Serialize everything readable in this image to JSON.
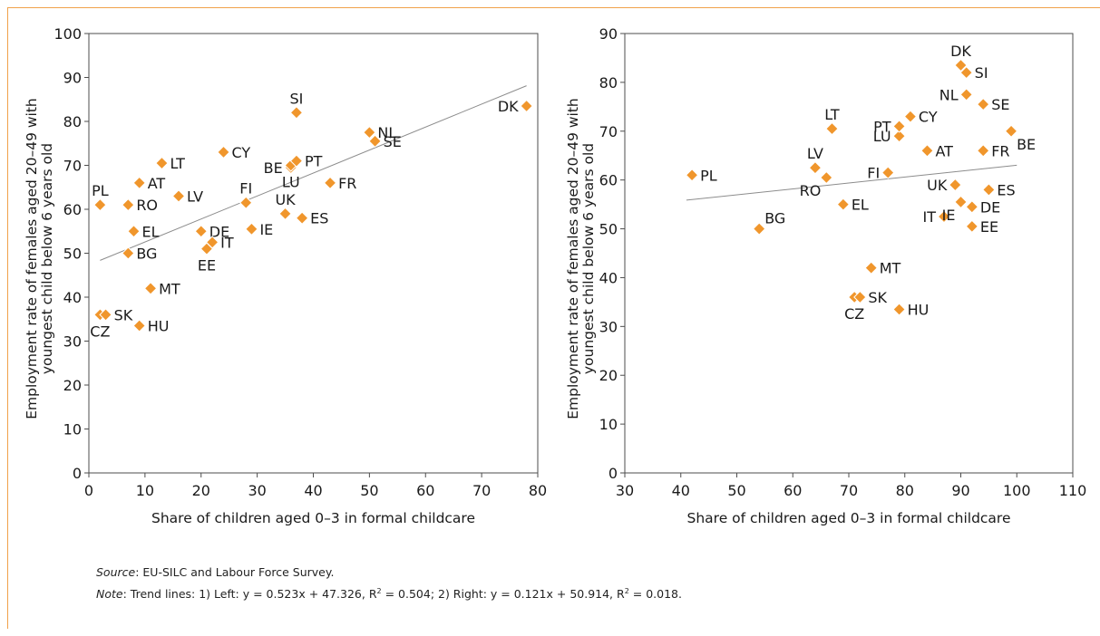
{
  "chart_data": [
    {
      "type": "scatter",
      "title": "",
      "xlabel": "Share of children aged 0–3 in formal childcare",
      "ylabel_lines": [
        "Employment rate of females aged 20–49 with",
        "youngest child below 6 years old"
      ],
      "xlim": [
        0,
        80
      ],
      "ylim": [
        0,
        100
      ],
      "xticks": [
        0,
        10,
        20,
        30,
        40,
        50,
        60,
        70,
        80
      ],
      "yticks": [
        0,
        10,
        20,
        30,
        40,
        50,
        60,
        70,
        80,
        90,
        100
      ],
      "grid": false,
      "marker_color": "#f0962c",
      "trendline": {
        "slope": 0.523,
        "intercept": 47.326,
        "x_range": [
          2,
          78
        ],
        "color": "#8c8c8c"
      },
      "points": [
        {
          "label": "PL",
          "x": 2,
          "y": 61,
          "anchor": "above"
        },
        {
          "label": "CZ",
          "x": 2,
          "y": 36,
          "anchor": "below"
        },
        {
          "label": "SK",
          "x": 3,
          "y": 36,
          "anchor": "right"
        },
        {
          "label": "BG",
          "x": 7,
          "y": 50,
          "anchor": "right"
        },
        {
          "label": "RO",
          "x": 7,
          "y": 61,
          "anchor": "right"
        },
        {
          "label": "EL",
          "x": 8,
          "y": 55,
          "anchor": "right"
        },
        {
          "label": "AT",
          "x": 9,
          "y": 66,
          "anchor": "right"
        },
        {
          "label": "HU",
          "x": 9,
          "y": 33.5,
          "anchor": "right"
        },
        {
          "label": "MT",
          "x": 11,
          "y": 42,
          "anchor": "right"
        },
        {
          "label": "LT",
          "x": 13,
          "y": 70.5,
          "anchor": "right"
        },
        {
          "label": "LV",
          "x": 16,
          "y": 63,
          "anchor": "right"
        },
        {
          "label": "DE",
          "x": 20,
          "y": 55,
          "anchor": "right"
        },
        {
          "label": "EE",
          "x": 21,
          "y": 51,
          "anchor": "below"
        },
        {
          "label": "IT",
          "x": 22,
          "y": 52.5,
          "anchor": "right"
        },
        {
          "label": "CY",
          "x": 24,
          "y": 73,
          "anchor": "right"
        },
        {
          "label": "FI",
          "x": 28,
          "y": 61.5,
          "anchor": "above"
        },
        {
          "label": "IE",
          "x": 29,
          "y": 55.5,
          "anchor": "right"
        },
        {
          "label": "UK",
          "x": 35,
          "y": 59,
          "anchor": "above"
        },
        {
          "label": "BE",
          "x": 36,
          "y": 69.5,
          "anchor": "left"
        },
        {
          "label": "LU",
          "x": 36,
          "y": 70,
          "anchor": "below"
        },
        {
          "label": "PT",
          "x": 37,
          "y": 71,
          "anchor": "right"
        },
        {
          "label": "SI",
          "x": 37,
          "y": 82,
          "anchor": "above"
        },
        {
          "label": "ES",
          "x": 38,
          "y": 58,
          "anchor": "right"
        },
        {
          "label": "FR",
          "x": 43,
          "y": 66,
          "anchor": "right"
        },
        {
          "label": "NL",
          "x": 50,
          "y": 77.5,
          "anchor": "right"
        },
        {
          "label": "SE",
          "x": 51,
          "y": 75.5,
          "anchor": "right"
        },
        {
          "label": "DK",
          "x": 78,
          "y": 83.5,
          "anchor": "left"
        }
      ]
    },
    {
      "type": "scatter",
      "title": "",
      "xlabel": "Share of children aged 0–3 in formal childcare",
      "ylabel_lines": [
        "Employment rate of females aged 20–49 with",
        "youngest child below 6 years old"
      ],
      "xlim": [
        30,
        110
      ],
      "ylim": [
        0,
        90
      ],
      "xticks": [
        30,
        40,
        50,
        60,
        70,
        80,
        90,
        100,
        110
      ],
      "yticks": [
        0,
        10,
        20,
        30,
        40,
        50,
        60,
        70,
        80,
        90
      ],
      "grid": false,
      "marker_color": "#f0962c",
      "trendline": {
        "slope": 0.121,
        "intercept": 50.914,
        "x_range": [
          41,
          100
        ],
        "color": "#8c8c8c"
      },
      "points": [
        {
          "label": "PL",
          "x": 42,
          "y": 61,
          "anchor": "right"
        },
        {
          "label": "BG",
          "x": 54,
          "y": 50,
          "anchor": "above-right"
        },
        {
          "label": "LV",
          "x": 64,
          "y": 62.5,
          "anchor": "above"
        },
        {
          "label": "RO",
          "x": 66,
          "y": 60.5,
          "anchor": "below-left"
        },
        {
          "label": "LT",
          "x": 67,
          "y": 70.5,
          "anchor": "above"
        },
        {
          "label": "EL",
          "x": 69,
          "y": 55,
          "anchor": "right"
        },
        {
          "label": "CZ",
          "x": 71,
          "y": 36,
          "anchor": "below"
        },
        {
          "label": "SK",
          "x": 72,
          "y": 36,
          "anchor": "right"
        },
        {
          "label": "MT",
          "x": 74,
          "y": 42,
          "anchor": "right"
        },
        {
          "label": "FI",
          "x": 77,
          "y": 61.5,
          "anchor": "left"
        },
        {
          "label": "HU",
          "x": 79,
          "y": 33.5,
          "anchor": "right"
        },
        {
          "label": "LU",
          "x": 79,
          "y": 69,
          "anchor": "left"
        },
        {
          "label": "PT",
          "x": 79,
          "y": 71,
          "anchor": "left"
        },
        {
          "label": "CY",
          "x": 81,
          "y": 73,
          "anchor": "right"
        },
        {
          "label": "AT",
          "x": 84,
          "y": 66,
          "anchor": "right"
        },
        {
          "label": "IT",
          "x": 87,
          "y": 52.5,
          "anchor": "left"
        },
        {
          "label": "UK",
          "x": 89,
          "y": 59,
          "anchor": "left"
        },
        {
          "label": "IE",
          "x": 90,
          "y": 55.5,
          "anchor": "below-left"
        },
        {
          "label": "DK",
          "x": 90,
          "y": 83.5,
          "anchor": "above"
        },
        {
          "label": "NL",
          "x": 91,
          "y": 77.5,
          "anchor": "left"
        },
        {
          "label": "SI",
          "x": 91,
          "y": 82,
          "anchor": "right"
        },
        {
          "label": "DE",
          "x": 92,
          "y": 54.5,
          "anchor": "right"
        },
        {
          "label": "EE",
          "x": 92,
          "y": 50.5,
          "anchor": "right"
        },
        {
          "label": "SE",
          "x": 94,
          "y": 75.5,
          "anchor": "right"
        },
        {
          "label": "FR",
          "x": 94,
          "y": 66,
          "anchor": "right"
        },
        {
          "label": "ES",
          "x": 95,
          "y": 58,
          "anchor": "right"
        },
        {
          "label": "BE",
          "x": 99,
          "y": 70,
          "anchor": "below-right"
        }
      ]
    }
  ],
  "notes": {
    "source_label": "Source",
    "source_text": ": EU-SILC and Labour Force Survey.",
    "note_label": "Note",
    "note_text_1": ": Trend lines: 1) Left: y = 0.523x + 47.326, R",
    "note_sup_1": "2",
    "note_text_2": " = 0.504; 2) Right: y = 0.121x + 50.914, R",
    "note_sup_2": "2",
    "note_text_3": " = 0.018."
  }
}
